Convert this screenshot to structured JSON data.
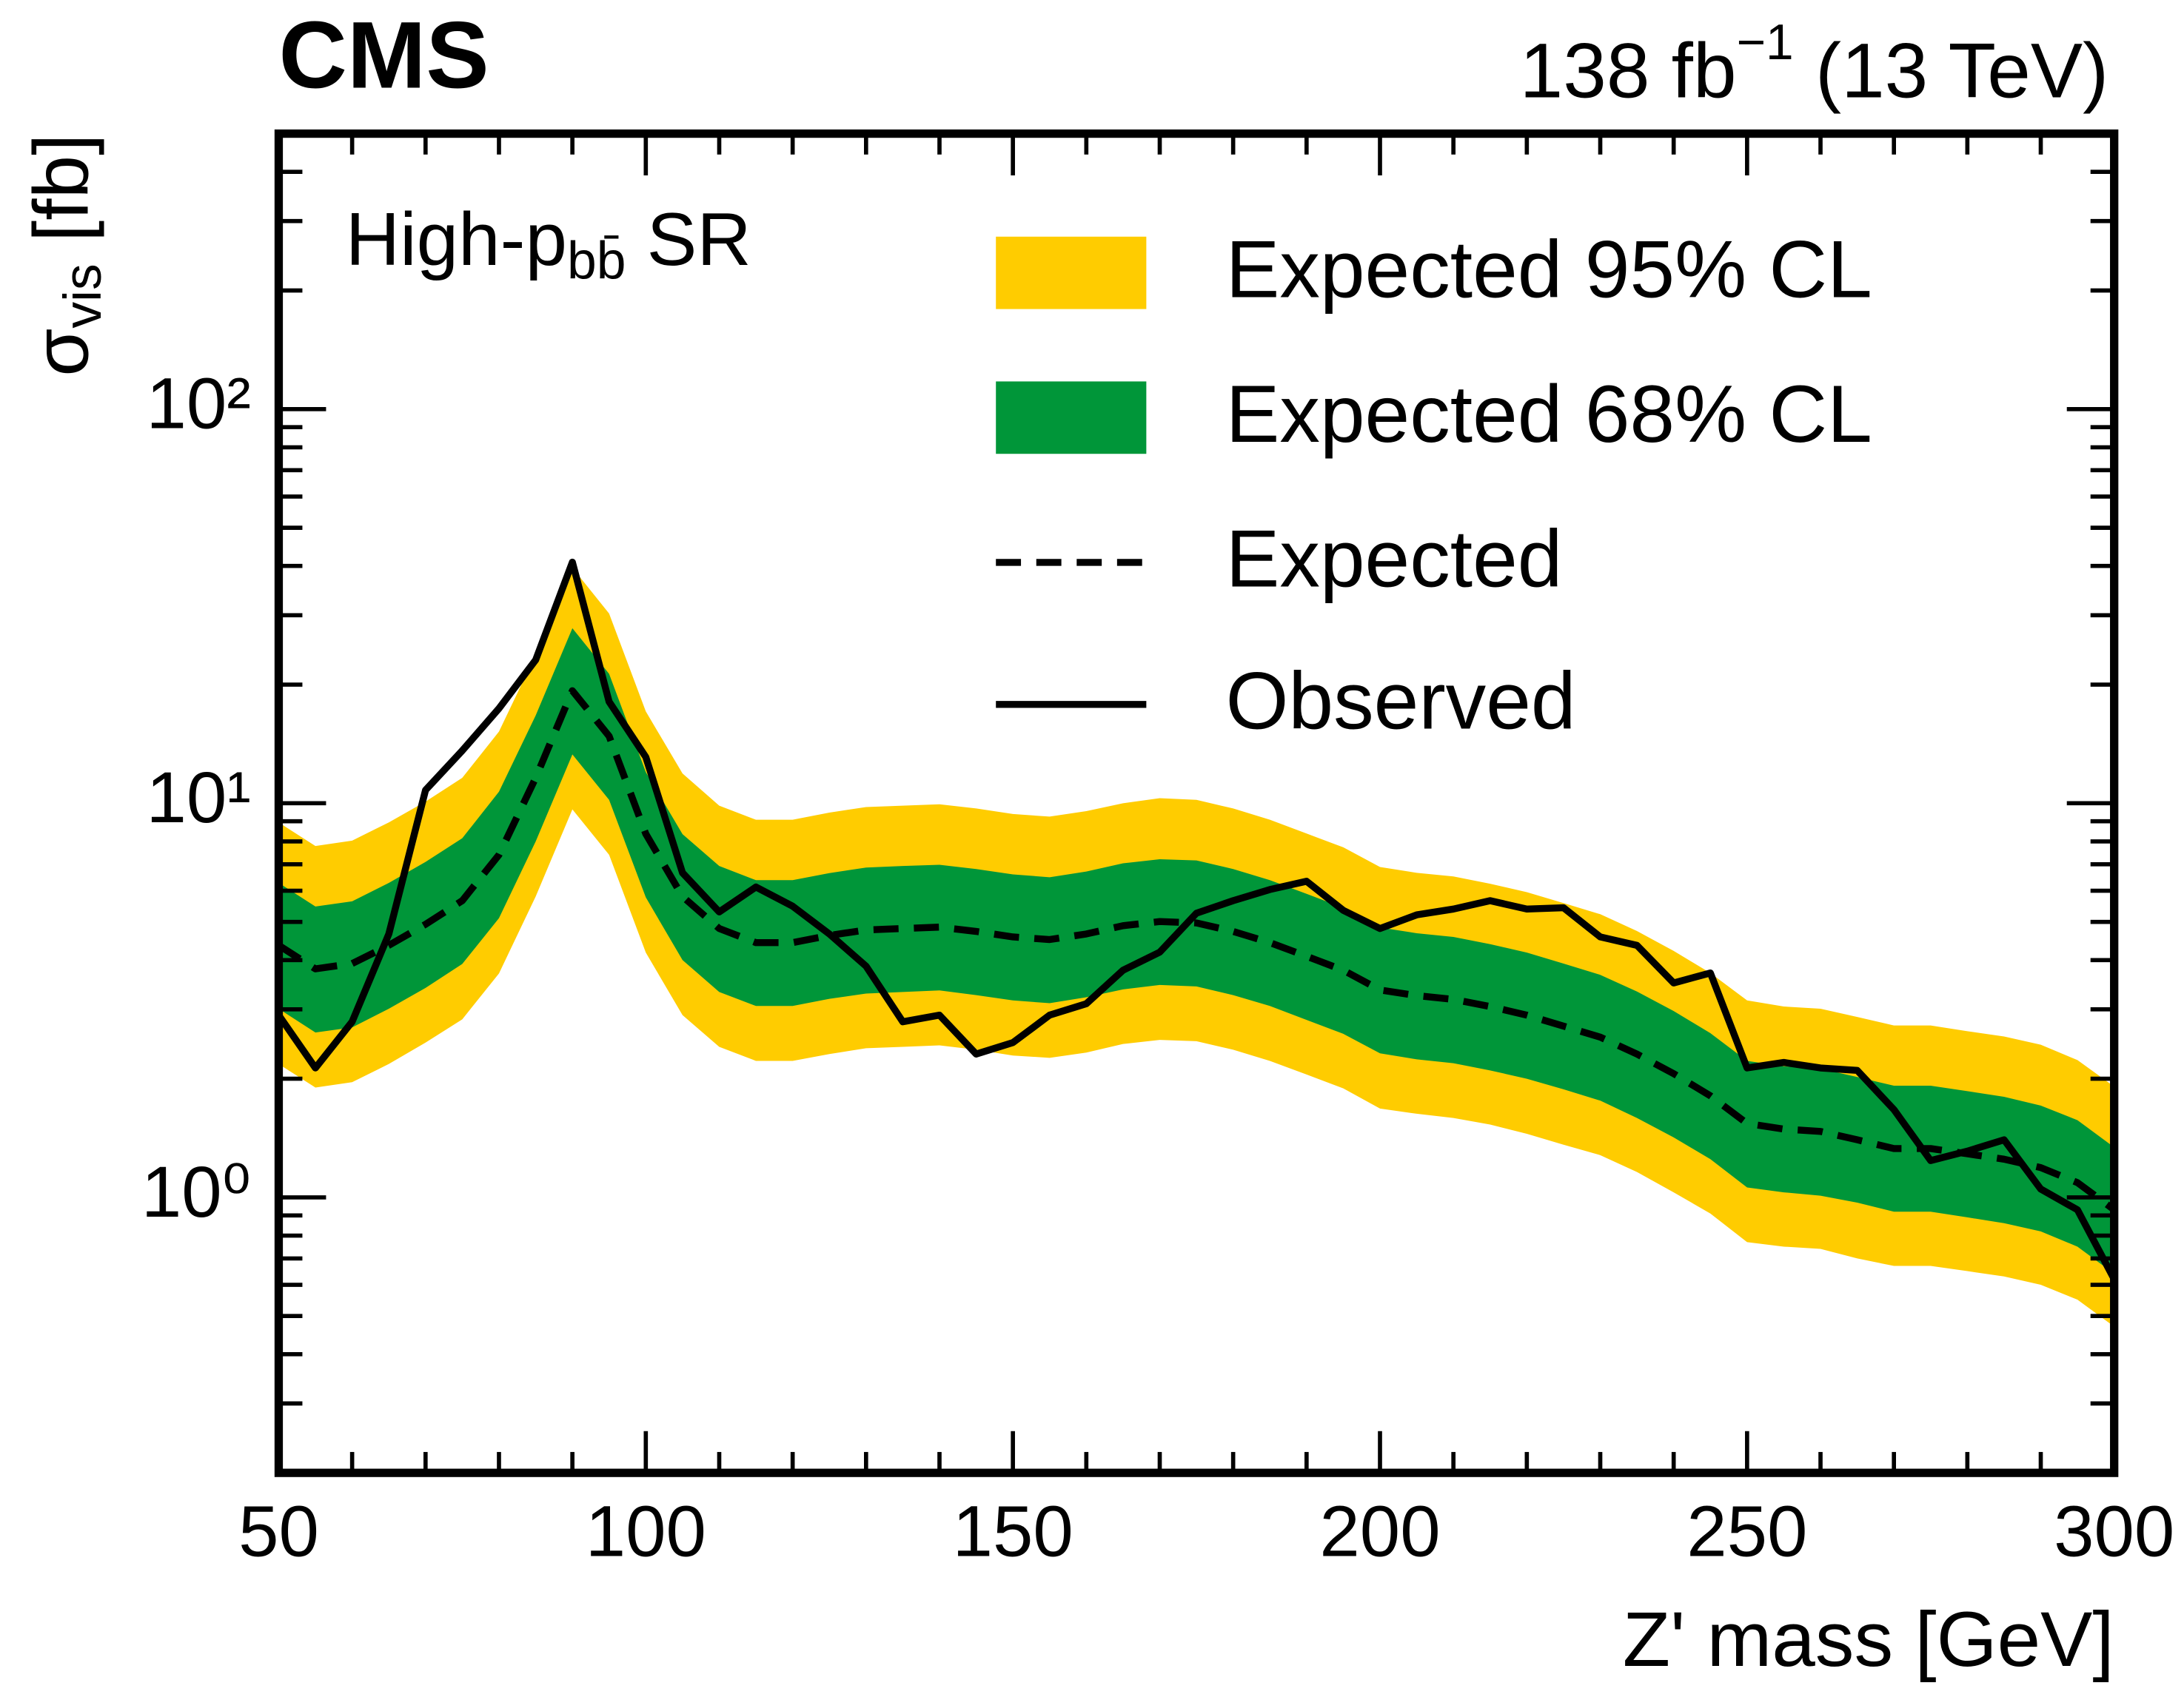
{
  "chart_data": {
    "type": "line",
    "experiment": "CMS",
    "lumi": [
      "138 fb",
      "−1",
      " (13 TeV)"
    ],
    "annotation": [
      "High-p",
      "bb̄",
      " SR"
    ],
    "xlabel": "Z' mass [GeV]",
    "ylabel": [
      "σ",
      "vis",
      " [fb]"
    ],
    "ylog": true,
    "xlim": [
      50,
      300
    ],
    "ylim": [
      0.2,
      500
    ],
    "xticks": [
      50,
      100,
      150,
      200,
      250,
      300
    ],
    "xminorticks": [
      60,
      70,
      80,
      90,
      110,
      120,
      130,
      140,
      160,
      170,
      180,
      190,
      210,
      220,
      230,
      240,
      260,
      270,
      280,
      290
    ],
    "yticks": [
      {
        "value": 1,
        "label": "10⁰"
      },
      {
        "value": 10,
        "label": "10¹"
      },
      {
        "value": 100,
        "label": "10²"
      }
    ],
    "yminorticks": [
      0.3,
      0.4,
      0.5,
      0.6,
      0.7,
      0.8,
      0.9,
      2,
      3,
      4,
      5,
      6,
      7,
      8,
      9,
      20,
      30,
      40,
      50,
      60,
      70,
      80,
      90,
      200,
      300,
      400
    ],
    "x": [
      50,
      55,
      60,
      65,
      70,
      75,
      80,
      85,
      90,
      95,
      100,
      105,
      110,
      115,
      120,
      125,
      130,
      135,
      140,
      145,
      150,
      155,
      160,
      165,
      170,
      175,
      180,
      185,
      190,
      195,
      200,
      205,
      210,
      215,
      220,
      225,
      230,
      235,
      240,
      245,
      250,
      255,
      260,
      265,
      270,
      275,
      280,
      285,
      290,
      295,
      300
    ],
    "bands": [
      {
        "name": "Expected 95% CL",
        "color": "#ffcc00",
        "upper": [
          8.94,
          7.79,
          8.04,
          8.94,
          10.1,
          11.6,
          15.2,
          23.8,
          39.6,
          30.3,
          17.1,
          11.9,
          9.86,
          9.08,
          9.08,
          9.47,
          9.78,
          9.86,
          9.94,
          9.7,
          9.39,
          9.25,
          9.55,
          10.0,
          10.3,
          10.2,
          9.7,
          9.08,
          8.38,
          7.73,
          6.89,
          6.66,
          6.52,
          6.25,
          5.95,
          5.58,
          5.23,
          4.74,
          4.22,
          3.71,
          3.16,
          3.05,
          3.01,
          2.87,
          2.73,
          2.73,
          2.64,
          2.56,
          2.44,
          2.23,
          1.91
        ],
        "lower": [
          2.18,
          1.9,
          1.96,
          2.18,
          2.47,
          2.83,
          3.7,
          5.8,
          9.65,
          7.4,
          4.18,
          2.9,
          2.41,
          2.22,
          2.22,
          2.31,
          2.39,
          2.41,
          2.43,
          2.37,
          2.29,
          2.26,
          2.33,
          2.45,
          2.51,
          2.49,
          2.37,
          2.22,
          2.05,
          1.89,
          1.68,
          1.63,
          1.59,
          1.53,
          1.45,
          1.36,
          1.28,
          1.16,
          1.03,
          0.91,
          0.77,
          0.75,
          0.74,
          0.7,
          0.67,
          0.67,
          0.65,
          0.63,
          0.6,
          0.55,
          0.47
        ]
      },
      {
        "name": "Expected 68% CL",
        "color": "#009639",
        "upper": [
          6.28,
          5.47,
          5.64,
          6.28,
          7.1,
          8.15,
          10.7,
          16.7,
          27.8,
          21.3,
          12.0,
          8.35,
          6.93,
          6.38,
          6.38,
          6.65,
          6.87,
          6.93,
          6.98,
          6.81,
          6.6,
          6.49,
          6.71,
          7.04,
          7.21,
          7.16,
          6.81,
          6.38,
          5.89,
          5.43,
          4.84,
          4.68,
          4.58,
          4.39,
          4.18,
          3.92,
          3.67,
          3.33,
          2.97,
          2.61,
          2.22,
          2.15,
          2.12,
          2.02,
          1.92,
          1.92,
          1.86,
          1.8,
          1.71,
          1.57,
          1.34
        ],
        "lower": [
          3.01,
          2.62,
          2.7,
          3.01,
          3.4,
          3.91,
          5.11,
          8.0,
          13.3,
          10.2,
          5.77,
          4.0,
          3.32,
          3.06,
          3.06,
          3.19,
          3.29,
          3.32,
          3.35,
          3.26,
          3.16,
          3.11,
          3.22,
          3.37,
          3.46,
          3.43,
          3.26,
          3.06,
          2.82,
          2.6,
          2.32,
          2.24,
          2.19,
          2.1,
          2.0,
          1.88,
          1.76,
          1.59,
          1.42,
          1.25,
          1.06,
          1.03,
          1.01,
          0.97,
          0.92,
          0.92,
          0.89,
          0.86,
          0.82,
          0.75,
          0.64
        ]
      }
    ],
    "series": [
      {
        "name": "Expected",
        "color": "#000000",
        "dashed": true,
        "values": [
          4.36,
          3.8,
          3.92,
          4.36,
          4.93,
          5.66,
          7.4,
          11.6,
          19.3,
          14.8,
          8.36,
          5.8,
          4.81,
          4.43,
          4.43,
          4.62,
          4.77,
          4.81,
          4.85,
          4.73,
          4.58,
          4.51,
          4.66,
          4.89,
          5.01,
          4.97,
          4.73,
          4.43,
          4.09,
          3.77,
          3.36,
          3.25,
          3.18,
          3.05,
          2.9,
          2.72,
          2.55,
          2.31,
          2.06,
          1.81,
          1.54,
          1.49,
          1.47,
          1.4,
          1.33,
          1.33,
          1.29,
          1.25,
          1.19,
          1.09,
          0.93
        ]
      },
      {
        "name": "Observed",
        "color": "#000000",
        "dashed": false,
        "values": [
          2.9,
          2.13,
          2.79,
          4.66,
          10.8,
          13.6,
          17.4,
          23.1,
          40.9,
          18.1,
          13.1,
          6.66,
          5.3,
          6.13,
          5.48,
          4.66,
          3.86,
          2.79,
          2.9,
          2.31,
          2.47,
          2.9,
          3.1,
          3.77,
          4.19,
          5.26,
          5.66,
          6.04,
          6.34,
          5.35,
          4.81,
          5.21,
          5.39,
          5.66,
          5.39,
          5.43,
          4.58,
          4.36,
          3.5,
          3.71,
          2.13,
          2.2,
          2.13,
          2.1,
          1.67,
          1.24,
          1.31,
          1.4,
          1.05,
          0.93,
          0.62
        ]
      }
    ]
  }
}
